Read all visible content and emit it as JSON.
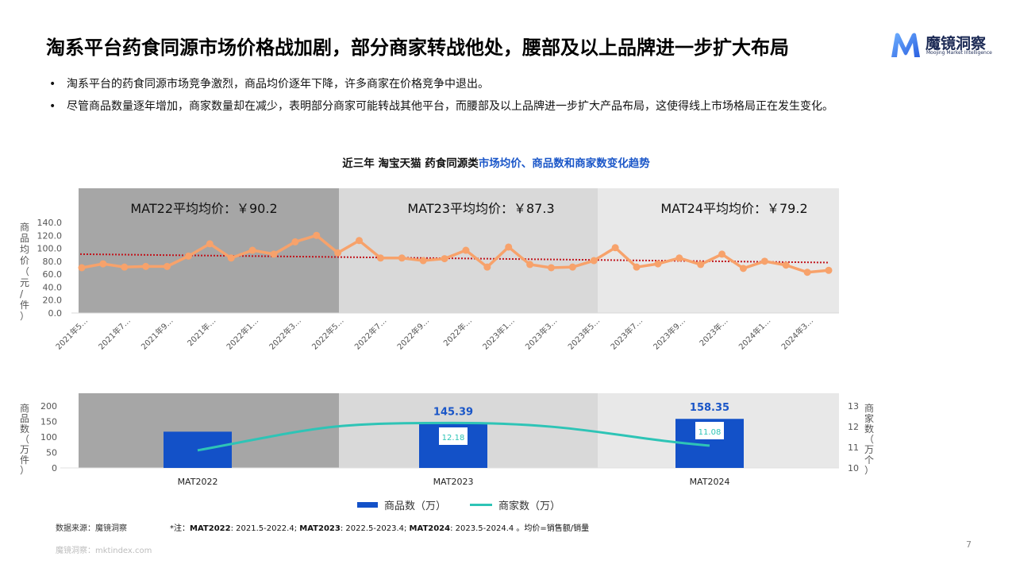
{
  "header": {
    "title": "淘系平台药食同源市场价格战加剧，部分商家转战他处，腰部及以上品牌进一步扩大布局",
    "logo": {
      "name": "魔镜洞察",
      "subtitle": "Moojing Market Intelligence",
      "brand_color": "#3a7bf0"
    }
  },
  "bullets": [
    "淘系平台的药食同源市场竞争激烈，商品均价逐年下降，许多商家在价格竞争中退出。",
    "尽管商品数量逐年增加，商家数量却在减少，表明部分商家可能转战其他平台，而腰部及以上品牌进一步扩大产品布局，这使得线上市场格局正在发生变化。"
  ],
  "chart_title": {
    "prefix": "近三年 淘宝天猫 药食同源类",
    "highlight": "市场均价、商品数和商家数变化趋势",
    "highlight_color": "#1a56c8"
  },
  "chart_data": [
    {
      "type": "line",
      "title": "商品均价月度走势",
      "ylabel": "商品均价（元/件）",
      "xlabel": "",
      "ylim": [
        0,
        140
      ],
      "yticks": [
        "140.0",
        "120.0",
        "100.0",
        "80.0",
        "60.0",
        "40.0",
        "20.0",
        "0.0"
      ],
      "xtick_labels": [
        "2021年5…",
        "2021年7…",
        "2021年9…",
        "2021年…",
        "2022年1…",
        "2022年3…",
        "2022年5…",
        "2022年7…",
        "2022年9…",
        "2022年…",
        "2023年1…",
        "2023年3…",
        "2023年5…",
        "2023年7…",
        "2023年9…",
        "2023年…",
        "2024年1…",
        "2024年3…"
      ],
      "x": [
        "2021-05",
        "2021-06",
        "2021-07",
        "2021-08",
        "2021-09",
        "2021-10",
        "2021-11",
        "2021-12",
        "2022-01",
        "2022-02",
        "2022-03",
        "2022-04",
        "2022-05",
        "2022-06",
        "2022-07",
        "2022-08",
        "2022-09",
        "2022-10",
        "2022-11",
        "2022-12",
        "2023-01",
        "2023-02",
        "2023-03",
        "2023-04",
        "2023-05",
        "2023-06",
        "2023-07",
        "2023-08",
        "2023-09",
        "2023-10",
        "2023-11",
        "2023-12",
        "2024-01",
        "2024-02",
        "2024-03",
        "2024-04"
      ],
      "series": [
        {
          "name": "商品均价",
          "color": "#f7a26b",
          "values": [
            70,
            76,
            71,
            72,
            72,
            88,
            107,
            85,
            97,
            91,
            110,
            120,
            93,
            112,
            85,
            85,
            81,
            84,
            97,
            71,
            102,
            75,
            70,
            71,
            81,
            101,
            71,
            76,
            85,
            75,
            91,
            69,
            80,
            74,
            63,
            66
          ]
        }
      ],
      "trendline": {
        "style": "dotted",
        "color": "#c0141c",
        "start": 91,
        "end": 78
      },
      "bands": [
        {
          "label": "MAT22平均均价：￥90.2",
          "color": "#a6a6a6"
        },
        {
          "label": "MAT23平均均价：￥87.3",
          "color": "#d9d9d9"
        },
        {
          "label": "MAT24平均均价：￥79.2",
          "color": "#e8e8e8"
        }
      ],
      "grid": false
    },
    {
      "type": "bar",
      "title": "商品数与商家数",
      "categories": [
        "MAT2022",
        "MAT2023",
        "MAT2024"
      ],
      "series": [
        {
          "name": "商品数（万）",
          "axis": "left",
          "color": "#1351c8",
          "values": [
            117,
            145.39,
            158.35
          ],
          "data_labels": [
            "",
            "145.39",
            "158.35"
          ]
        },
        {
          "name": "商家数（万）",
          "axis": "right",
          "type": "line",
          "color": "#2ec4b6",
          "values": [
            10.85,
            12.18,
            11.08
          ],
          "data_labels": [
            "",
            "12.18",
            "11.08"
          ]
        }
      ],
      "ylabel": "商品数（万件）",
      "ylabel_right": "商家数（万个）",
      "ylim": [
        0,
        200
      ],
      "yticks": [
        "200",
        "150",
        "100",
        "50",
        "0"
      ],
      "ylim_right": [
        10,
        13
      ],
      "yticks_right": [
        "13",
        "12",
        "11",
        "10"
      ],
      "legend_position": "bottom"
    }
  ],
  "legend": {
    "bar_label": "商品数（万）",
    "line_label": "商家数（万）"
  },
  "footer": {
    "source": "数据来源：魔镜洞察",
    "note_prefix": "*注：",
    "note_parts": [
      {
        "bold": "MAT2022",
        "text": ": 2021.5-2022.4; "
      },
      {
        "bold": "MAT2023",
        "text": ": 2022.5-2023.4; "
      },
      {
        "bold": "MAT2024",
        "text": ": 2023.5-2024.4 。均价=销售额/销量"
      }
    ],
    "watermark": "魔镜洞察：mktindex.com",
    "page_number": "7"
  }
}
